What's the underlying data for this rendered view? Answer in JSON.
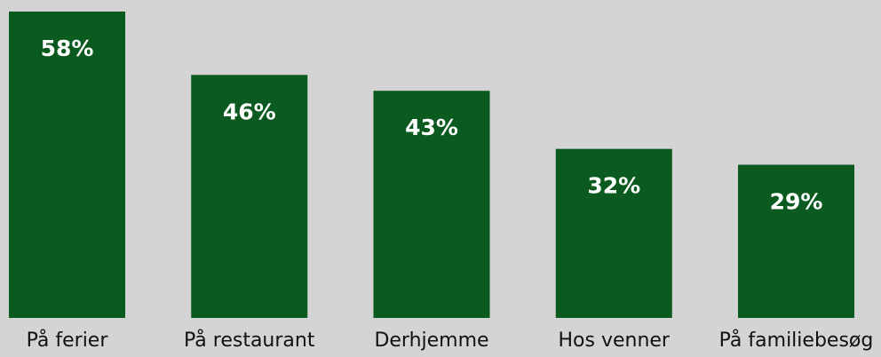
{
  "chart_data": {
    "type": "bar",
    "categories": [
      "På ferier",
      "På restaurant",
      "Derhjemme",
      "Hos venner",
      "På familiebesøg"
    ],
    "values": [
      58,
      46,
      43,
      32,
      29
    ],
    "value_labels": [
      "58%",
      "46%",
      "43%",
      "32%",
      "29%"
    ],
    "color": "#0b5a1f"
  }
}
